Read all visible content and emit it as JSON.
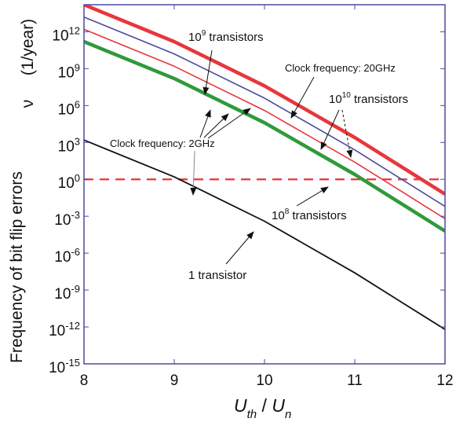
{
  "chart_data": {
    "type": "line",
    "x_axis": {
      "label_main": "U",
      "label_main_sub": "th",
      "label_sep": " / ",
      "label_den": "U",
      "label_den_sub": "n",
      "range": [
        8,
        12
      ],
      "ticks": [
        {
          "value": 8,
          "label": "8"
        },
        {
          "value": 9,
          "label": "9"
        },
        {
          "value": 10,
          "label": "10"
        },
        {
          "value": 11,
          "label": "11"
        },
        {
          "value": 12,
          "label": "12"
        }
      ]
    },
    "y_axis": {
      "label": "Frequency of bit flip errors",
      "symbol": "ν",
      "unit": "(1/year)",
      "scale": "log",
      "range_exp": [
        -15,
        14.2
      ],
      "ticks": [
        {
          "value": 1000000000000.0,
          "base": "10",
          "exp": "12"
        },
        {
          "value": 1000000000.0,
          "base": "10",
          "exp": "9"
        },
        {
          "value": 1000000.0,
          "base": "10",
          "exp": "6"
        },
        {
          "value": 1000.0,
          "base": "10",
          "exp": "3"
        },
        {
          "value": 1,
          "base": "10",
          "exp": "0"
        },
        {
          "value": 0.001,
          "base": "10",
          "exp": "-3"
        },
        {
          "value": 1e-06,
          "base": "10",
          "exp": "-6"
        },
        {
          "value": 1e-09,
          "base": "10",
          "exp": "-9"
        },
        {
          "value": 1e-12,
          "base": "10",
          "exp": "-12"
        },
        {
          "value": 1e-15,
          "base": "10",
          "exp": "-15"
        }
      ]
    },
    "series": [
      {
        "key": "s20ghz_1e10",
        "color": "#e8363c",
        "width": 4.5,
        "x": [
          8,
          9,
          10,
          11,
          12
        ],
        "log10_y": [
          14.2,
          11.2,
          7.6,
          3.4,
          -1.2
        ]
      },
      {
        "key": "s2ghz_1e10",
        "color": "#4a4aa0",
        "width": 1.6,
        "x": [
          8,
          9,
          10,
          11,
          12
        ],
        "log10_y": [
          13.2,
          10.2,
          6.6,
          2.4,
          -2.2
        ]
      },
      {
        "key": "s2ghz_1e9",
        "color": "#e8363c",
        "width": 1.6,
        "x": [
          8,
          9,
          10,
          11,
          12
        ],
        "log10_y": [
          12.2,
          9.2,
          5.6,
          1.4,
          -3.2
        ]
      },
      {
        "key": "s2ghz_1e8",
        "color": "#2f9a3a",
        "width": 4.5,
        "x": [
          8,
          9,
          10,
          11,
          12
        ],
        "log10_y": [
          11.2,
          8.2,
          4.6,
          0.4,
          -4.2
        ]
      },
      {
        "key": "s2ghz_1",
        "color": "#111111",
        "width": 1.8,
        "x": [
          8,
          9,
          10,
          11,
          12
        ],
        "log10_y": [
          3.2,
          0.2,
          -3.4,
          -7.6,
          -12.2
        ]
      }
    ],
    "reference_line": {
      "log10_y": 0,
      "color": "#e8363c",
      "style": "dashed"
    },
    "annotations": [
      {
        "key": "a_1e9",
        "base": "10",
        "exp": "9",
        "text": " transistors"
      },
      {
        "key": "a_clk20",
        "text": "Clock frequency: 20GHz"
      },
      {
        "key": "a_1e10",
        "base": "10",
        "exp": "10",
        "text": " transistors"
      },
      {
        "key": "a_clk2",
        "text": "Clock frequency: 2GHz"
      },
      {
        "key": "a_1e8",
        "base": "10",
        "exp": "8",
        "text": " transistors"
      },
      {
        "key": "a_1",
        "text": "1 transistor"
      }
    ],
    "colors": {
      "frame": "#4a4aa0",
      "red": "#e8363c",
      "blue": "#4a4aa0",
      "green": "#2f9a3a",
      "black": "#111111"
    }
  }
}
